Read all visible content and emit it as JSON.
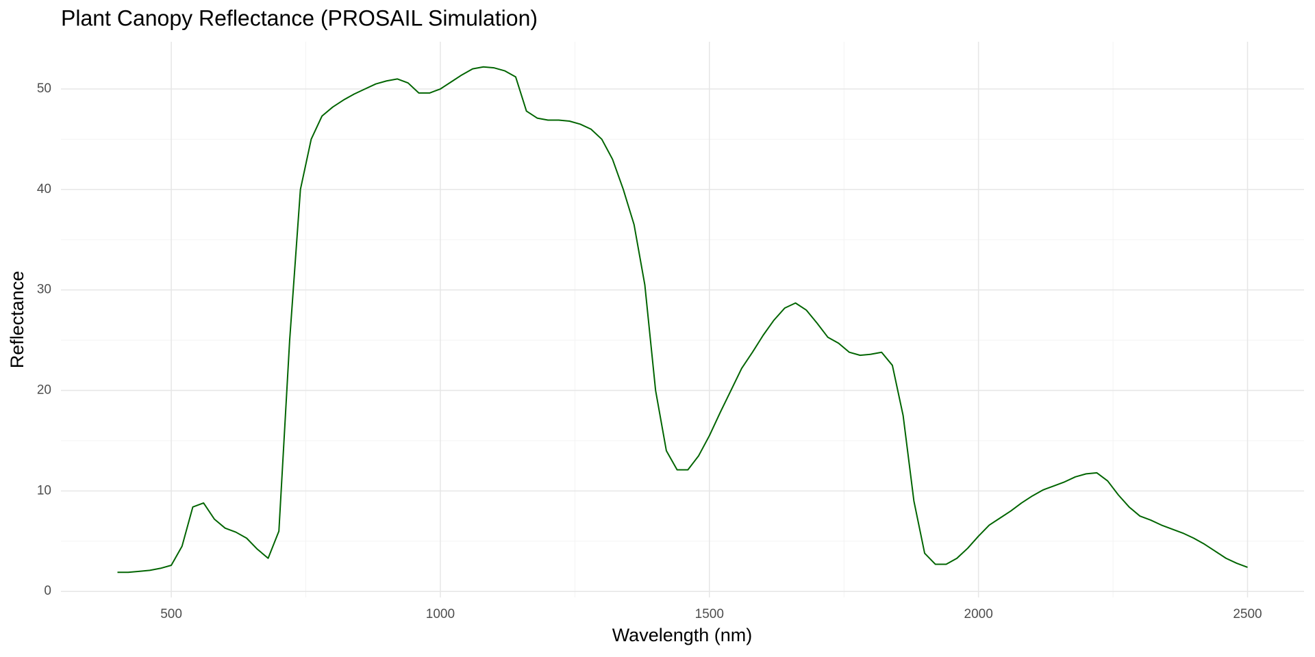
{
  "chart_data": {
    "type": "line",
    "title": "Plant Canopy Reflectance (PROSAIL Simulation)",
    "x_label": "Wavelength (nm)",
    "y_label": "Reflectance",
    "x": [
      400,
      420,
      440,
      460,
      480,
      500,
      520,
      540,
      560,
      580,
      600,
      620,
      640,
      660,
      680,
      700,
      720,
      740,
      760,
      780,
      800,
      820,
      840,
      860,
      880,
      900,
      920,
      940,
      960,
      980,
      1000,
      1020,
      1040,
      1060,
      1080,
      1100,
      1120,
      1140,
      1160,
      1180,
      1200,
      1220,
      1240,
      1260,
      1280,
      1300,
      1320,
      1340,
      1360,
      1380,
      1400,
      1420,
      1440,
      1460,
      1480,
      1500,
      1520,
      1540,
      1560,
      1580,
      1600,
      1620,
      1640,
      1660,
      1680,
      1700,
      1720,
      1740,
      1760,
      1780,
      1800,
      1820,
      1840,
      1860,
      1880,
      1900,
      1920,
      1940,
      1960,
      1980,
      2000,
      2020,
      2040,
      2060,
      2080,
      2100,
      2120,
      2140,
      2160,
      2180,
      2200,
      2220,
      2240,
      2260,
      2280,
      2300,
      2320,
      2340,
      2360,
      2380,
      2400,
      2420,
      2440,
      2460,
      2480,
      2500
    ],
    "series": [
      {
        "color": "#006400",
        "values": [
          1.9,
          1.9,
          2.0,
          2.1,
          2.3,
          2.6,
          4.5,
          8.4,
          8.8,
          7.2,
          6.3,
          5.9,
          5.3,
          4.2,
          3.3,
          6.0,
          25,
          40,
          45,
          47.3,
          48.2,
          48.9,
          49.5,
          50.0,
          50.5,
          50.8,
          51.0,
          50.6,
          49.6,
          49.6,
          50.0,
          50.7,
          51.4,
          52.0,
          52.2,
          52.1,
          51.8,
          51.2,
          47.8,
          47.1,
          46.9,
          46.9,
          46.8,
          46.5,
          46.0,
          45.0,
          43.0,
          40.0,
          36.5,
          30.5,
          20.0,
          14.0,
          12.1,
          12.1,
          13.5,
          15.5,
          17.8,
          20.0,
          22.2,
          23.8,
          25.5,
          27.0,
          28.2,
          28.7,
          28.0,
          26.7,
          25.3,
          24.7,
          23.8,
          23.5,
          23.6,
          23.8,
          22.5,
          17.5,
          9.0,
          3.8,
          2.7,
          2.7,
          3.3,
          4.3,
          5.5,
          6.6,
          7.3,
          8.0,
          8.8,
          9.5,
          10.1,
          10.5,
          10.9,
          11.4,
          11.7,
          11.8,
          11.0,
          9.6,
          8.4,
          7.5,
          7.1,
          6.6,
          6.2,
          5.8,
          5.3,
          4.7,
          4.0,
          3.3,
          2.8,
          2.4
        ]
      }
    ],
    "xlim": [
      295,
      2605
    ],
    "xticks": [
      500,
      1000,
      1500,
      2000,
      2500
    ],
    "ylim": [
      -0.6,
      54.7
    ],
    "yticks": [
      0,
      10,
      20,
      30,
      40,
      50
    ],
    "grid": true
  }
}
